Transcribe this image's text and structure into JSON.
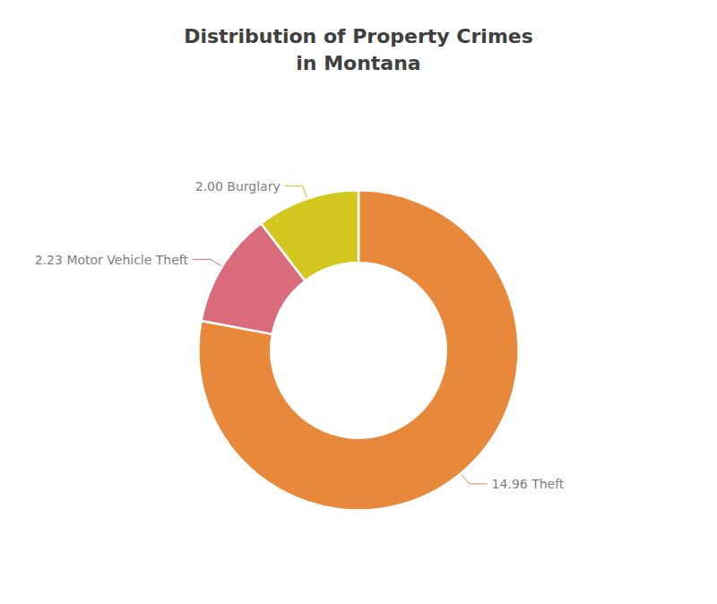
{
  "chart_data": {
    "type": "pie",
    "title": "Distribution of Property Crimes\nin Montana",
    "categories": [
      "Theft",
      "Motor Vehicle Theft",
      "Burglary"
    ],
    "values": [
      14.96,
      2.23,
      2.0
    ],
    "value_labels": [
      "14.96 Theft",
      "2.23 Motor Vehicle Theft",
      "2.00 Burglary"
    ],
    "colors": [
      "#E8883A",
      "#D96B7A",
      "#D4C820"
    ],
    "data_labels": true
  }
}
